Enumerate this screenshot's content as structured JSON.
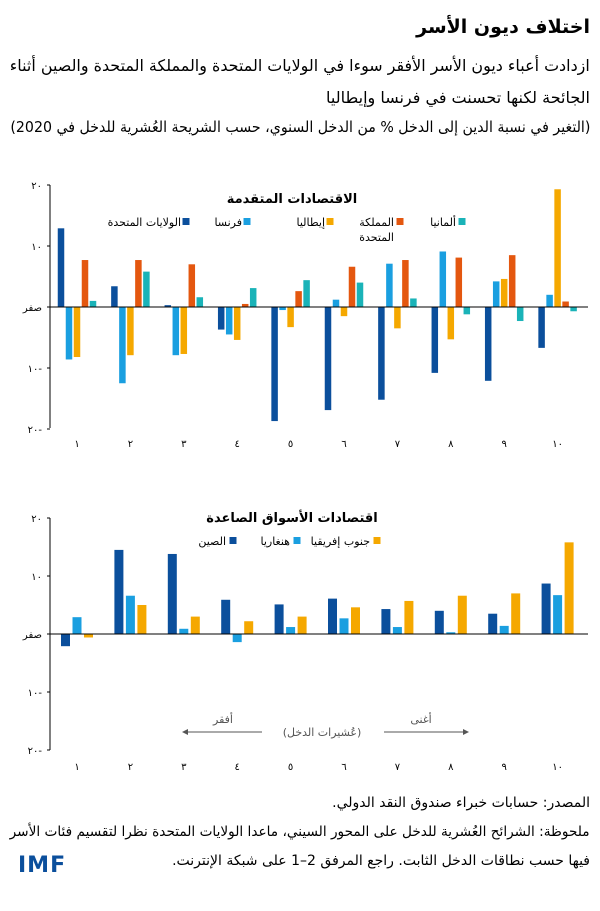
{
  "header": {
    "title": "اختلاف ديون الأسر",
    "subtitle_line1": "ازدادت أعباء ديون الأسر الأفقر سوءا في الولايات المتحدة والمملكة المتحدة والصين أثناء",
    "subtitle_line2": "الجائحة لكنها تحسنت في فرنسا وإيطاليا",
    "units_note": "(التغير في نسبة الدين إلى الدخل % من الدخل السنوي، حسب الشريحة العُشرية للدخل في 2020)"
  },
  "footer": {
    "source": "المصدر: حسابات خبراء صندوق النقد الدولي.",
    "note_line1": "ملحوظة: الشرائح العُشرية للدخل على المحور السيني، ماعدا الولايات المتحدة نظرا لتقسيم فئات الأسر",
    "note_line2": "فيها حسب نطاقات الدخل الثابت.  راجع المرفق 2–1 على شبكة الإنترنت.",
    "logo": "IMF"
  },
  "chart_data": [
    {
      "type": "bar",
      "title": "الاقتصادات المتقدمة",
      "categories": [
        "١",
        "٢",
        "٣",
        "٤",
        "٥",
        "٦",
        "٧",
        "٨",
        "٩",
        "١٠"
      ],
      "y_ticks": [
        {
          "v": 20,
          "label": "٢٠"
        },
        {
          "v": 10,
          "label": "١٠"
        },
        {
          "v": 0,
          "label": "صفر"
        },
        {
          "v": -10,
          "label": "١٠-"
        },
        {
          "v": -20,
          "label": "٢٠-"
        }
      ],
      "ylim": [
        -20,
        20
      ],
      "series": [
        {
          "name": "الولايات المتحدة",
          "color": "#0b4f9c",
          "values": [
            12.9,
            3.4,
            0.3,
            -3.7,
            -18.7,
            -16.9,
            -15.2,
            -10.8,
            -12.1,
            -6.7
          ]
        },
        {
          "name": "فرنسا",
          "color": "#1a9fe0",
          "values": [
            -8.6,
            -12.5,
            -7.9,
            -4.5,
            -0.5,
            1.2,
            7.1,
            9.1,
            4.2,
            2.0
          ]
        },
        {
          "name": "إيطاليا",
          "color": "#f5a800",
          "values": [
            -8.2,
            -7.9,
            -7.7,
            -5.4,
            -3.3,
            -1.5,
            -3.5,
            -5.3,
            4.6,
            19.3
          ]
        },
        {
          "name": "المملكة",
          "name_line2": "المتحدة",
          "color": "#e4570f",
          "values": [
            7.7,
            7.7,
            7.0,
            0.5,
            2.6,
            6.6,
            7.7,
            8.1,
            8.5,
            0.9
          ]
        },
        {
          "name": "ألمانيا",
          "color": "#1ab3b8",
          "values": [
            1.0,
            5.8,
            1.6,
            3.1,
            4.4,
            4.0,
            1.4,
            -1.2,
            -2.3,
            -0.7
          ]
        }
      ]
    },
    {
      "type": "bar",
      "title": "اقتصادات الأسواق الصاعدة",
      "categories": [
        "١",
        "٢",
        "٣",
        "٤",
        "٥",
        "٦",
        "٧",
        "٨",
        "٩",
        "١٠"
      ],
      "y_ticks": [
        {
          "v": 20,
          "label": "٢٠"
        },
        {
          "v": 10,
          "label": "١٠"
        },
        {
          "v": 0,
          "label": "صفر"
        },
        {
          "v": -10,
          "label": "١٠-"
        },
        {
          "v": -20,
          "label": "٢٠-"
        }
      ],
      "ylim": [
        -20,
        20
      ],
      "xlabel": "(عُشيرات الدخل)",
      "poorer_label": "أفقر",
      "richer_label": "أغنى",
      "series": [
        {
          "name": "الصين",
          "color": "#0b4f9c",
          "values": [
            -2.1,
            14.5,
            13.8,
            5.9,
            5.1,
            6.1,
            4.3,
            4.0,
            3.5,
            8.7
          ]
        },
        {
          "name": "هنغاريا",
          "color": "#1a9fe0",
          "values": [
            2.9,
            6.6,
            0.9,
            -1.4,
            1.2,
            2.7,
            1.2,
            0.3,
            1.4,
            6.7
          ]
        },
        {
          "name": "جنوب إفريقيا",
          "color": "#f5a800",
          "values": [
            -0.6,
            5.0,
            3.0,
            2.2,
            3.0,
            4.6,
            5.7,
            6.6,
            7.0,
            15.8
          ]
        }
      ]
    }
  ]
}
